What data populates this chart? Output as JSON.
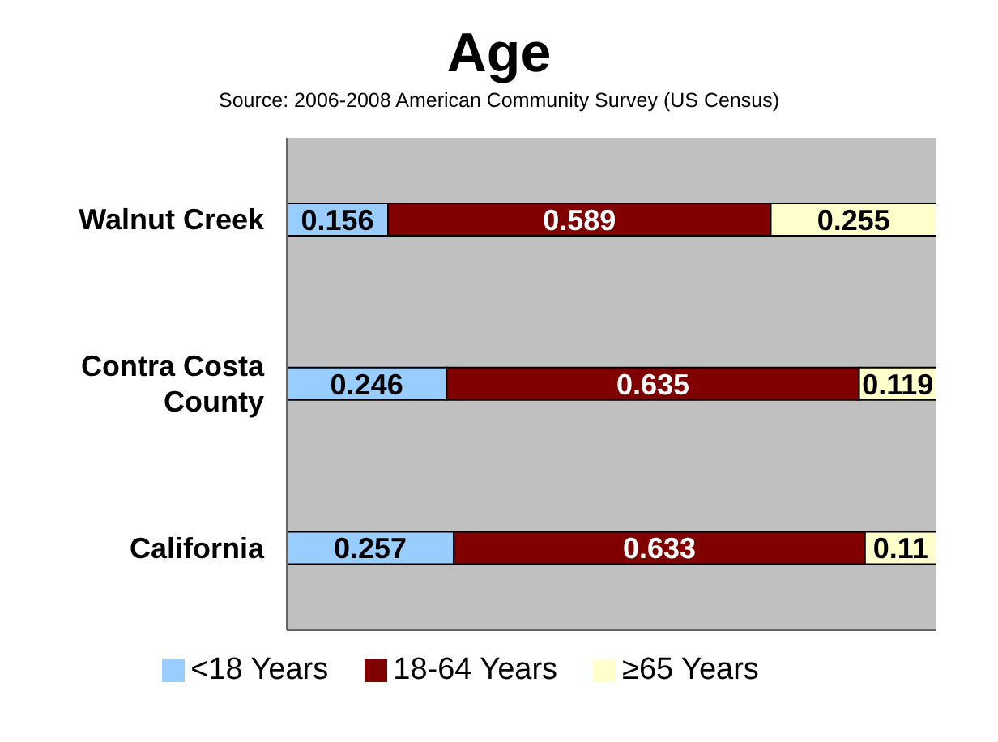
{
  "chart_data": {
    "type": "bar",
    "orientation": "horizontal",
    "stacked": true,
    "title": "Age",
    "subtitle": "Source: 2006-2008 American Community Survey (US Census)",
    "categories": [
      "Walnut Creek",
      "Contra Costa County",
      "California"
    ],
    "series": [
      {
        "name": "<18 Years",
        "color": "#99ccff",
        "values": [
          0.156,
          0.246,
          0.257
        ]
      },
      {
        "name": "18-64 Years",
        "color": "#800000",
        "values": [
          0.589,
          0.635,
          0.633
        ]
      },
      {
        "name": "≥65 Years",
        "color": "#ffffcc",
        "values": [
          0.255,
          0.119,
          0.11
        ]
      }
    ],
    "xlim": [
      0,
      1
    ],
    "legend": "bottom",
    "data_labels": true,
    "tick_labels": "y"
  }
}
